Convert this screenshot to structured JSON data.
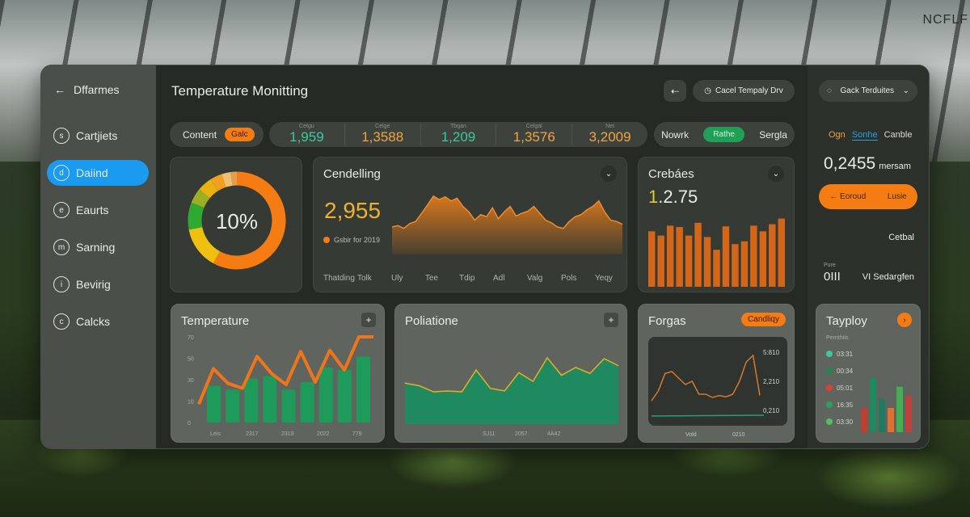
{
  "logo": "NCFLF",
  "sidebar": {
    "header": "Dffarmes",
    "items": [
      {
        "label": "Cartjiets",
        "icon": "s"
      },
      {
        "label": "Daiind",
        "icon": "d"
      },
      {
        "label": "Eaurts",
        "icon": "e"
      },
      {
        "label": "Sarning",
        "icon": "m"
      },
      {
        "label": "Bevirig",
        "icon": "i"
      },
      {
        "label": "Calcks",
        "icon": "c"
      }
    ],
    "active_index": 1
  },
  "header": {
    "title": "Temperature Monitting",
    "back_icon": "back-arrow",
    "action_label": "Cacel Tempaly Drv",
    "dropdown_label": "Gack Terduites"
  },
  "filters": {
    "content_label": "Content",
    "content_badge": "Galc",
    "stats": [
      {
        "label": "Cetgu",
        "value": "1,959",
        "color": "#3dc9a0"
      },
      {
        "label": "Celge",
        "value": "1,3588",
        "color": "#f0a640"
      },
      {
        "label": "Tbgan",
        "value": "1,209",
        "color": "#3dc9a0"
      },
      {
        "label": "Celgal",
        "value": "1,3576",
        "color": "#f0a640"
      },
      {
        "label": "Net",
        "value": "3,2009",
        "color": "#f0a640"
      }
    ],
    "toggle": [
      "Nowrk",
      "Rathe",
      "Sergla"
    ],
    "toggle_active": 1
  },
  "colors": {
    "accent": "#f57c12",
    "active": "#1a9af0",
    "green": "#1fa055"
  },
  "right": {
    "tabs": [
      "Ogn",
      "Sonhe",
      "Canble"
    ],
    "active_tab": 1,
    "value": "0,2455",
    "unit": "mersam",
    "button_left": "Eoroud",
    "button_right": "Lusie",
    "label1": "Cetbal",
    "small_label": "Pure",
    "small_value": "0III",
    "label2": "VI Sedargfen"
  },
  "donut": {
    "value_label": "10%"
  },
  "cendelling": {
    "title": "Cendelling",
    "value": "2,955",
    "legend": "Gsbir for 2019"
  },
  "crebaes": {
    "title": "Crebáes",
    "value_prefix": "1",
    "value_rest": ".2.75"
  },
  "temperature": {
    "title": "Temperature"
  },
  "poliatione": {
    "title": "Poliatione"
  },
  "forgas": {
    "title": "Forgas",
    "button": "Candliqy"
  },
  "tayploy": {
    "title": "Tayploy",
    "subtitle": "Pernthtis"
  },
  "chart_data": [
    {
      "id": "donut",
      "type": "pie",
      "slices": [
        {
          "value": 58,
          "color": "#f57c12"
        },
        {
          "value": 14,
          "color": "#f0c010"
        },
        {
          "value": 9,
          "color": "#2eaa30"
        },
        {
          "value": 5,
          "color": "#9ab020"
        },
        {
          "value": 5,
          "color": "#e8b010"
        },
        {
          "value": 4,
          "color": "#f0a020"
        },
        {
          "value": 3,
          "color": "#f0c070"
        },
        {
          "value": 2,
          "color": "#e0a050"
        }
      ]
    },
    {
      "id": "cendelling",
      "type": "area",
      "color": "#e07a1a",
      "values": [
        40,
        42,
        38,
        45,
        48,
        60,
        72,
        85,
        80,
        84,
        78,
        82,
        70,
        62,
        50,
        58,
        55,
        68,
        52,
        62,
        70,
        56,
        60,
        63,
        70,
        60,
        50,
        46,
        40,
        38,
        48,
        55,
        58,
        65,
        70,
        78,
        62,
        50,
        48,
        44
      ],
      "xticks": [
        "Thatding",
        "Tolk",
        "Uly",
        "Tee",
        "Tdip",
        "Adl",
        "Valg",
        "Pols",
        "Yeqy"
      ]
    },
    {
      "id": "crebaes",
      "type": "bar",
      "color": "#d4661a",
      "values": [
        78,
        72,
        86,
        84,
        72,
        90,
        70,
        52,
        85,
        60,
        64,
        86,
        78,
        88,
        96
      ],
      "ylim": [
        0,
        100
      ]
    },
    {
      "id": "temperature",
      "type": "bar",
      "bar_color": "#1e9a5a",
      "line_color": "#f0741a",
      "values": [
        30,
        27,
        36,
        38,
        27,
        33,
        45,
        43,
        54
      ],
      "line": [
        15,
        44,
        32,
        28,
        54,
        40,
        31,
        58,
        33,
        59,
        43,
        70,
        70
      ],
      "ylim": [
        0,
        70
      ],
      "yticks": [
        "0",
        "10",
        "30",
        "50",
        "70"
      ],
      "xticks": [
        "Leis",
        "2317",
        "2319",
        "2022",
        "779"
      ]
    },
    {
      "id": "poliatione",
      "type": "area",
      "color": "#1f8a60",
      "line_color": "#e8b020",
      "values": [
        47,
        44,
        37,
        38,
        37,
        62,
        41,
        38,
        59,
        49,
        76,
        56,
        65,
        58,
        75,
        67
      ],
      "ylim": [
        0,
        100
      ],
      "xticks": [
        "SJ11",
        "2057",
        "4A42"
      ]
    },
    {
      "id": "forgas",
      "type": "line",
      "color": "#d87a2a",
      "baseline_color": "#2aa070",
      "values": [
        20,
        35,
        62,
        65,
        55,
        45,
        50,
        30,
        30,
        25,
        28,
        26,
        30,
        50,
        80,
        90,
        28
      ],
      "ylim": [
        0,
        100
      ],
      "yticks": [
        "5:810",
        "2,210",
        "0,210"
      ],
      "xticks": [
        "Vold",
        "0210"
      ]
    },
    {
      "id": "tayploy",
      "type": "bar",
      "legend": [
        {
          "label": "03:31",
          "color": "#3dc9a0"
        },
        {
          "label": "00:34",
          "color": "#1f8a50"
        },
        {
          "label": "05:01",
          "color": "#e04030"
        },
        {
          "label": "16:35",
          "color": "#2aa060"
        },
        {
          "label": "03:30",
          "color": "#50c060"
        }
      ],
      "bars": [
        {
          "value": 40,
          "color": "#c04030"
        },
        {
          "value": 90,
          "color": "#1f8a60"
        },
        {
          "value": 55,
          "color": "#1f7a60"
        },
        {
          "value": 40,
          "color": "#e07030"
        },
        {
          "value": 75,
          "color": "#40b050"
        },
        {
          "value": 60,
          "color": "#c04040"
        }
      ],
      "ylim": [
        0,
        100
      ]
    }
  ]
}
